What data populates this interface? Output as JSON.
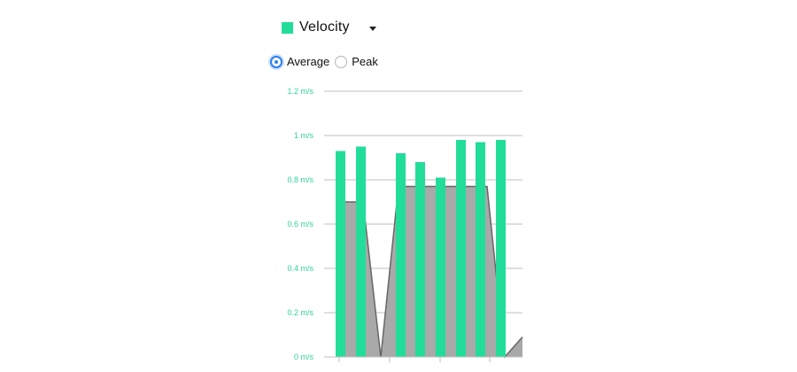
{
  "header": {
    "metric_label": "Velocity",
    "swatch_color": "#22dd99",
    "caret_icon": "caret-down-icon"
  },
  "mode": {
    "options": [
      {
        "label": "Average",
        "selected": true
      },
      {
        "label": "Peak",
        "selected": false
      }
    ]
  },
  "colors": {
    "bar": "#22dd99",
    "area_fill": "#a9a9a9",
    "area_line": "#666666",
    "grid": "#bfbfbf",
    "tick_text": "#2fd39a"
  },
  "chart_data": {
    "type": "bar",
    "unit": "m/s",
    "ylim": [
      0,
      1.2
    ],
    "yticks": [
      "0 m/s",
      "0.2 m/s",
      "0.4 m/s",
      "0.6 m/s",
      "0.8 m/s",
      "1 m/s",
      "1.2 m/s"
    ],
    "grid": true,
    "series": [
      {
        "kind": "bar",
        "values": [
          0.93,
          0.95,
          0.92,
          0.88,
          0.81,
          0.98,
          0.97,
          0.98
        ]
      },
      {
        "kind": "area",
        "values": [
          0.7,
          0.7,
          0.0,
          0.77,
          0.77,
          0.77,
          0.77,
          0.77,
          0.77,
          0.0,
          0.09
        ]
      }
    ]
  }
}
